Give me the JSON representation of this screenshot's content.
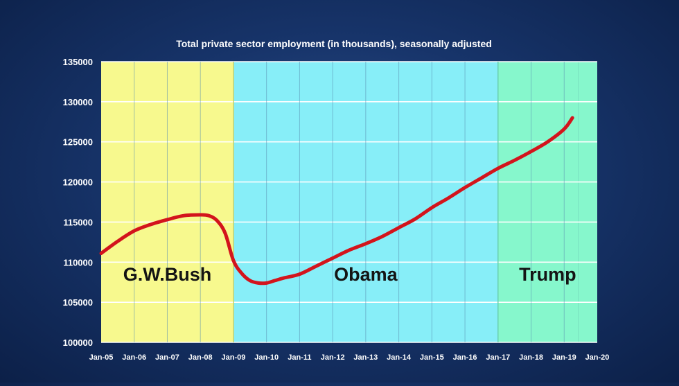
{
  "chart_data": {
    "type": "line",
    "title": "Total private sector employment (in thousands), seasonally adjusted",
    "xlabel": "",
    "ylabel": "",
    "ylim": [
      100000,
      135000
    ],
    "yticks": [
      100000,
      105000,
      110000,
      115000,
      120000,
      125000,
      130000,
      135000
    ],
    "xlim": [
      "2005-01",
      "2020-01"
    ],
    "xticks": [
      "Jan-05",
      "Jan-06",
      "Jan-07",
      "Jan-08",
      "Jan-09",
      "Jan-10",
      "Jan-11",
      "Jan-12",
      "Jan-13",
      "Jan-14",
      "Jan-15",
      "Jan-16",
      "Jan-17",
      "Jan-18",
      "Jan-19",
      "Jan-20"
    ],
    "grid": true,
    "regions": [
      {
        "label": "G.W.Bush",
        "start": "2005-01",
        "end": "2009-01",
        "color": "#f7f98e"
      },
      {
        "label": "Obama",
        "start": "2009-01",
        "end": "2017-01",
        "color": "#87eef8"
      },
      {
        "label": "Trump",
        "start": "2017-01",
        "end": "2019-06",
        "color": "#86f7cc"
      },
      {
        "label": "",
        "start": "2019-06",
        "end": "2020-01",
        "color": "#86f7cc"
      }
    ],
    "series": [
      {
        "color": "#d3141c",
        "x": [
          "2005-01",
          "2005-07",
          "2006-01",
          "2006-07",
          "2007-01",
          "2007-07",
          "2008-01",
          "2008-04",
          "2008-07",
          "2008-10",
          "2009-01",
          "2009-04",
          "2009-07",
          "2009-10",
          "2010-01",
          "2010-04",
          "2010-07",
          "2011-01",
          "2011-07",
          "2012-01",
          "2012-07",
          "2013-01",
          "2013-07",
          "2014-01",
          "2014-07",
          "2015-01",
          "2015-07",
          "2016-01",
          "2016-07",
          "2017-01",
          "2017-07",
          "2018-01",
          "2018-07",
          "2019-01",
          "2019-04"
        ],
        "values": [
          111100,
          112600,
          113900,
          114700,
          115300,
          115800,
          115900,
          115800,
          115200,
          113600,
          110200,
          108600,
          107700,
          107400,
          107400,
          107700,
          108000,
          108500,
          109500,
          110500,
          111500,
          112300,
          113200,
          114300,
          115400,
          116800,
          118000,
          119300,
          120500,
          121700,
          122700,
          123800,
          125000,
          126600,
          128000
        ]
      }
    ]
  }
}
